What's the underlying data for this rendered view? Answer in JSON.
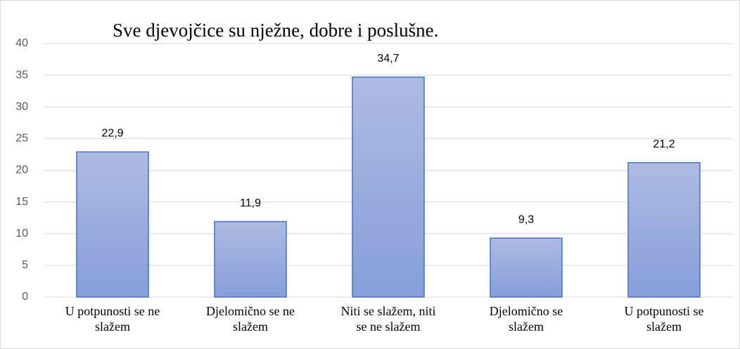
{
  "chart_data": {
    "type": "bar",
    "title": "Sve djevojčice su nježne, dobre i poslušne.",
    "categories": [
      "U potpunosti se ne\nslažem",
      "Djelomično se ne\nslažem",
      "Niti se slažem, niti\nse ne slažem",
      "Djelomično se\nslažem",
      "U potpunosti se\nslažem"
    ],
    "values": [
      22.9,
      11.9,
      34.7,
      9.3,
      21.2
    ],
    "value_labels": [
      "22,9",
      "11,9",
      "34,7",
      "9,3",
      "21,2"
    ],
    "color": "#4472c4",
    "ylim": [
      0,
      40
    ],
    "yticks": [
      0,
      5,
      10,
      15,
      20,
      25,
      30,
      35,
      40
    ],
    "grid": true
  }
}
